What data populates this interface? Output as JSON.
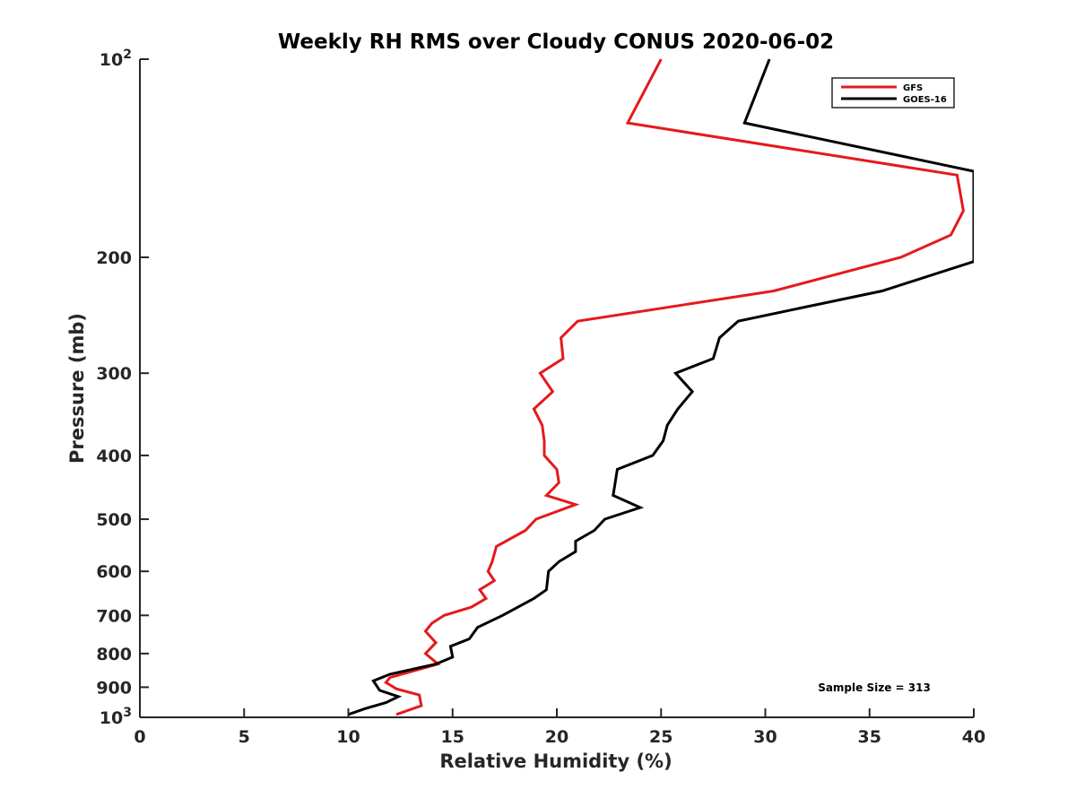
{
  "chart_data": {
    "type": "line",
    "title": "Weekly RH RMS over Cloudy CONUS 2020-06-02",
    "xlabel": "Relative Humidity (%)",
    "ylabel": "Pressure (mb)",
    "xlim": [
      0,
      40
    ],
    "ylim": [
      100,
      1000
    ],
    "y_scale": "log",
    "y_direction": "reversed",
    "grid": false,
    "legend_position": "top-right",
    "x_ticks": [
      "0",
      "5",
      "10",
      "15",
      "20",
      "25",
      "30",
      "35",
      "40"
    ],
    "y_ticks": [
      {
        "value": 100,
        "base": "10",
        "exp": "2"
      },
      {
        "value": 200,
        "label": "200"
      },
      {
        "value": 300,
        "label": "300"
      },
      {
        "value": 400,
        "label": "400"
      },
      {
        "value": 500,
        "label": "500"
      },
      {
        "value": 600,
        "label": "600"
      },
      {
        "value": 700,
        "label": "700"
      },
      {
        "value": 800,
        "label": "800"
      },
      {
        "value": 900,
        "label": "900"
      },
      {
        "value": 1000,
        "base": "10",
        "exp": "3"
      }
    ],
    "annotation": "Sample Size = 313",
    "series": [
      {
        "name": "GFS",
        "color": "#e41a1c",
        "points": [
          [
            25.0,
            100
          ],
          [
            23.4,
            125
          ],
          [
            39.2,
            150
          ],
          [
            39.5,
            170
          ],
          [
            38.9,
            185
          ],
          [
            36.5,
            200
          ],
          [
            30.4,
            225
          ],
          [
            21.0,
            250
          ],
          [
            20.2,
            265
          ],
          [
            20.3,
            285
          ],
          [
            19.2,
            300
          ],
          [
            19.8,
            320
          ],
          [
            18.9,
            340
          ],
          [
            19.3,
            360
          ],
          [
            19.4,
            380
          ],
          [
            19.4,
            400
          ],
          [
            20.0,
            420
          ],
          [
            20.1,
            440
          ],
          [
            19.5,
            460
          ],
          [
            20.9,
            475
          ],
          [
            19.0,
            500
          ],
          [
            18.5,
            520
          ],
          [
            17.1,
            550
          ],
          [
            16.9,
            580
          ],
          [
            16.7,
            600
          ],
          [
            17.0,
            620
          ],
          [
            16.3,
            640
          ],
          [
            16.6,
            660
          ],
          [
            15.9,
            680
          ],
          [
            14.6,
            700
          ],
          [
            14.0,
            720
          ],
          [
            13.7,
            740
          ],
          [
            14.2,
            770
          ],
          [
            13.7,
            800
          ],
          [
            14.3,
            830
          ],
          [
            12.0,
            870
          ],
          [
            11.8,
            885
          ],
          [
            12.3,
            905
          ],
          [
            13.4,
            925
          ],
          [
            13.5,
            960
          ],
          [
            12.3,
            990
          ]
        ]
      },
      {
        "name": "GOES-16",
        "color": "#000000",
        "points": [
          [
            30.2,
            100
          ],
          [
            29.0,
            125
          ],
          [
            40.0,
            148
          ],
          [
            40.0,
            203
          ],
          [
            35.6,
            225
          ],
          [
            28.7,
            250
          ],
          [
            27.8,
            265
          ],
          [
            27.5,
            285
          ],
          [
            25.7,
            300
          ],
          [
            26.5,
            320
          ],
          [
            25.8,
            340
          ],
          [
            25.3,
            360
          ],
          [
            25.1,
            380
          ],
          [
            24.6,
            400
          ],
          [
            22.9,
            420
          ],
          [
            22.8,
            440
          ],
          [
            22.7,
            460
          ],
          [
            24.0,
            480
          ],
          [
            22.3,
            500
          ],
          [
            21.8,
            520
          ],
          [
            20.9,
            540
          ],
          [
            20.9,
            560
          ],
          [
            20.1,
            580
          ],
          [
            19.6,
            600
          ],
          [
            19.5,
            640
          ],
          [
            18.9,
            660
          ],
          [
            17.4,
            700
          ],
          [
            16.2,
            730
          ],
          [
            15.8,
            760
          ],
          [
            14.9,
            780
          ],
          [
            15.0,
            810
          ],
          [
            14.2,
            830
          ],
          [
            12.0,
            860
          ],
          [
            11.2,
            880
          ],
          [
            11.5,
            910
          ],
          [
            12.4,
            930
          ],
          [
            11.8,
            950
          ],
          [
            10.8,
            970
          ],
          [
            10.0,
            990
          ]
        ]
      }
    ]
  }
}
